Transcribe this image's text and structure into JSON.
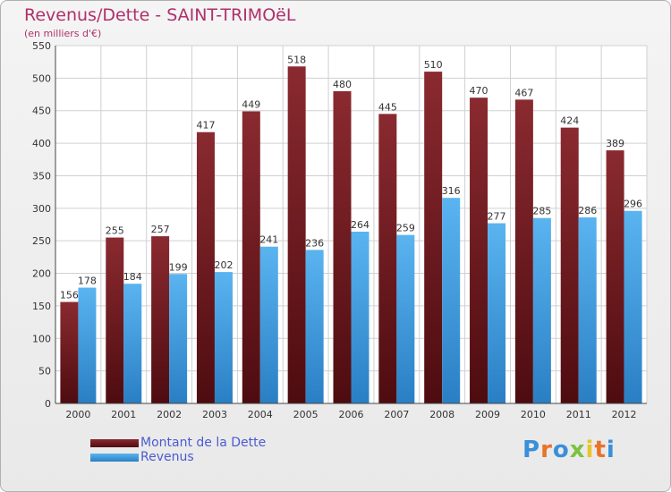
{
  "chart_data": {
    "type": "bar",
    "title": "Revenus/Dette - SAINT-TRIMOëL",
    "subtitle": "(en milliers d'€)",
    "categories": [
      "2000",
      "2001",
      "2002",
      "2003",
      "2004",
      "2005",
      "2006",
      "2007",
      "2008",
      "2009",
      "2010",
      "2011",
      "2012"
    ],
    "series": [
      {
        "name": "Montant de la Dette",
        "color": "#7a1c22",
        "values": [
          156,
          255,
          257,
          417,
          449,
          518,
          480,
          445,
          510,
          470,
          467,
          424,
          389
        ]
      },
      {
        "name": "Revenus",
        "color": "#4da6e8",
        "values": [
          178,
          184,
          199,
          202,
          241,
          236,
          264,
          259,
          316,
          277,
          285,
          286,
          296
        ]
      }
    ],
    "ylim": [
      0,
      550
    ],
    "yticks": [
      0,
      50,
      100,
      150,
      200,
      250,
      300,
      350,
      400,
      450,
      500,
      550
    ],
    "grid": true,
    "legend": "bottom-left"
  },
  "logo": {
    "text": "Proxiti"
  }
}
